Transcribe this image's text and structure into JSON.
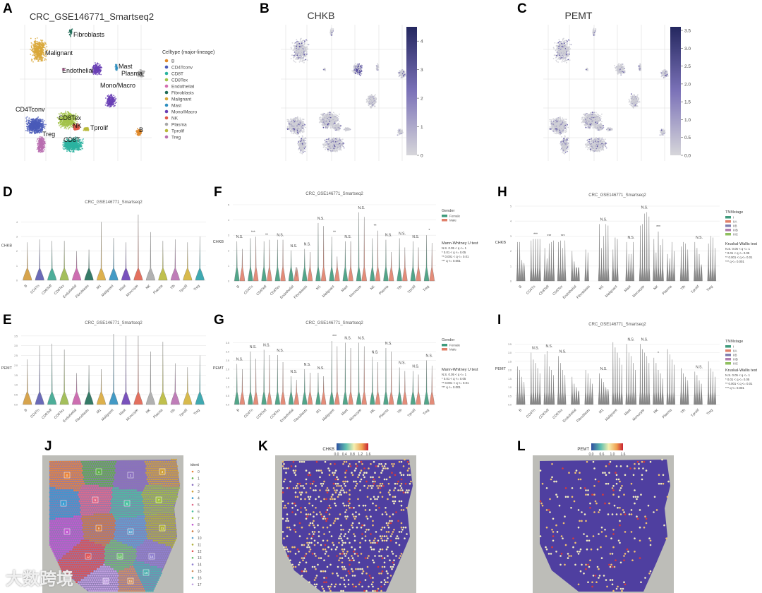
{
  "panels": {
    "A": "A",
    "B": "B",
    "C": "C",
    "D": "D",
    "E": "E",
    "F": "F",
    "G": "G",
    "H": "H",
    "I": "I",
    "J": "J",
    "K": "K",
    "L": "L"
  },
  "colors": {
    "female": "#3f9b7c",
    "male": "#e0806a",
    "gray": "#cfcfd4",
    "purple_dark": "#2b2f6e",
    "tissue_bg": "#bdbdb8",
    "spot": "#4f3fa0"
  },
  "watermark": "大数跨境",
  "chart_data": [
    {
      "id": "A",
      "type": "scatter",
      "title": "CRC_GSE146771_Smartseq2",
      "legend_title": "Celltype (major-lineage)",
      "legend_position": "right",
      "legend": [
        {
          "name": "B",
          "color": "#e08a2a"
        },
        {
          "name": "CD4Tconv",
          "color": "#4a5ab8"
        },
        {
          "name": "CD8T",
          "color": "#2bb3a0"
        },
        {
          "name": "CD8Tex",
          "color": "#a3c34a"
        },
        {
          "name": "Endothelial",
          "color": "#d46fb0"
        },
        {
          "name": "Fibroblasts",
          "color": "#1f6b57"
        },
        {
          "name": "Malignant",
          "color": "#d9a83a"
        },
        {
          "name": "Mast",
          "color": "#2f8fbf"
        },
        {
          "name": "Mono/Macro",
          "color": "#6a3fb5"
        },
        {
          "name": "NK",
          "color": "#e05a4a"
        },
        {
          "name": "Plasma",
          "color": "#a8a8a8"
        },
        {
          "name": "Tprolif",
          "color": "#b9b93a"
        },
        {
          "name": "Treg",
          "color": "#b86fb0"
        }
      ],
      "cluster_labels": [
        "Fibroblasts",
        "Malignant",
        "Endothelial",
        "Mast",
        "Plasma",
        "Mono/Macro",
        "CD4Tconv",
        "CD8Tex",
        "NK",
        "Tprolif",
        "Treg",
        "CD8T",
        "B"
      ]
    },
    {
      "id": "B",
      "type": "scatter",
      "title": "CHKB",
      "colorbar": {
        "ticks": [
          "0",
          "1",
          "2",
          "3",
          "4"
        ],
        "range": [
          0,
          4.5
        ]
      }
    },
    {
      "id": "C",
      "type": "scatter",
      "title": "PEMT",
      "colorbar": {
        "ticks": [
          "0.0",
          "0.5",
          "1.0",
          "1.5",
          "2.0",
          "2.5",
          "3.0",
          "3.5"
        ],
        "range": [
          0,
          3.6
        ]
      }
    },
    {
      "id": "D",
      "type": "violin",
      "title": "CRC_GSE146771_Smartseq2",
      "ylabel": "CHKB",
      "ylim": [
        0,
        4.6
      ],
      "yticks": [
        "0",
        "1",
        "2",
        "3",
        "4"
      ],
      "categories": [
        "B",
        "CD4Tn",
        "CD8Teff",
        "CD8Tex",
        "Endothelial",
        "Fibroblasts",
        "M1",
        "Malignant",
        "Mast",
        "Monocyte",
        "NK",
        "Plasma",
        "Tfh",
        "Tprolif",
        "Treg"
      ],
      "values": [
        2.6,
        2.8,
        2.7,
        2.7,
        2.0,
        2.1,
        4.0,
        2.9,
        2.6,
        4.5,
        3.3,
        2.7,
        2.8,
        2.6,
        3.0
      ]
    },
    {
      "id": "E",
      "type": "violin",
      "title": "CRC_GSE146771_Smartseq2",
      "ylabel": "PEMT",
      "ylim": [
        0,
        3.6
      ],
      "yticks": [
        "0.0",
        "0.5",
        "1.0",
        "1.5",
        "2.0",
        "2.5",
        "3.0",
        "3.5"
      ],
      "categories": [
        "B",
        "CD4Tn",
        "CD8Teff",
        "CD8Tex",
        "Endothelial",
        "Fibroblasts",
        "M1",
        "Malignant",
        "Mast",
        "Monocyte",
        "NK",
        "Plasma",
        "Tfh",
        "Tprolif",
        "Treg"
      ],
      "values": [
        2.3,
        3.0,
        3.1,
        2.8,
        1.6,
        2.0,
        1.8,
        3.6,
        3.5,
        3.5,
        2.7,
        3.2,
        2.1,
        1.9,
        2.5
      ]
    },
    {
      "id": "F",
      "type": "violin",
      "title": "CRC_GSE146771_Smartseq2",
      "ylabel": "CHKB",
      "ylim": [
        0,
        5
      ],
      "yticks": [
        "0",
        "1",
        "2",
        "3",
        "4",
        "5"
      ],
      "categories": [
        "B",
        "CD4Tn",
        "CD8Teff",
        "CD8Tex",
        "Endothelial",
        "Fibroblasts",
        "M1",
        "Malignant",
        "Mast",
        "Monocyte",
        "NK",
        "Plasma",
        "Tfh",
        "Tprolif",
        "Treg"
      ],
      "legend_title": "Gender",
      "legend": [
        {
          "name": "Female",
          "color": "#3f9b7c"
        },
        {
          "name": "Male",
          "color": "#e0806a"
        }
      ],
      "series": [
        {
          "name": "Female",
          "values": [
            2.6,
            2.8,
            2.6,
            2.7,
            2.0,
            2.1,
            3.8,
            2.9,
            2.6,
            4.5,
            2.8,
            2.7,
            2.8,
            2.6,
            3.0
          ]
        },
        {
          "name": "Male",
          "values": [
            2.1,
            2.9,
            2.7,
            2.7,
            0.3,
            1.9,
            3.6,
            1.6,
            2.6,
            4.2,
            3.3,
            1.9,
            2.2,
            2.2,
            2.5
          ]
        }
      ],
      "significance": [
        "N.S.",
        "***",
        "**",
        "N.S.",
        "N.S.",
        "N.S.",
        "N.S.",
        "**",
        "N.S.",
        "N.S.",
        "**",
        "N.S.",
        "N.S.",
        "N.S.",
        "*"
      ],
      "test_title": "Mann-Whitney U test",
      "test_legend": [
        "N.S. 0.05 < q <= 1",
        "* 0.01 < q <= 0.05",
        "** 0.001 < q <= 0.01",
        "*** q <= 0.001"
      ]
    },
    {
      "id": "G",
      "type": "violin",
      "title": "CRC_GSE146771_Smartseq2",
      "ylabel": "PEMT",
      "ylim": [
        0,
        4
      ],
      "yticks": [
        "0.0",
        "0.5",
        "1.0",
        "1.5",
        "2.0",
        "2.5",
        "3.0",
        "3.5"
      ],
      "categories": [
        "B",
        "CD4Tn",
        "CD8Teff",
        "CD8Tex",
        "Endothelial",
        "Fibroblasts",
        "M1",
        "Malignant",
        "Mast",
        "Monocyte",
        "NK",
        "Plasma",
        "Tfh",
        "Tprolif",
        "Treg"
      ],
      "legend_title": "Gender",
      "legend": [
        {
          "name": "Female",
          "color": "#3f9b7c"
        },
        {
          "name": "Male",
          "color": "#e0806a"
        }
      ],
      "series": [
        {
          "name": "Female",
          "values": [
            2.3,
            3.0,
            3.1,
            2.8,
            1.6,
            2.0,
            1.8,
            3.6,
            3.5,
            3.5,
            2.7,
            3.2,
            2.1,
            1.9,
            2.5
          ]
        },
        {
          "name": "Male",
          "values": [
            2.0,
            2.6,
            2.8,
            2.4,
            1.4,
            1.8,
            1.6,
            3.3,
            3.2,
            3.3,
            2.4,
            3.0,
            1.9,
            1.7,
            2.2
          ]
        }
      ],
      "significance": [
        "N.S.",
        "N.S.",
        "N.S.",
        "N.S.",
        "N.S.",
        "N.S.",
        "N.S.",
        "***",
        "N.S.",
        "N.S.",
        "N.S.",
        "N.S.",
        "N.S.",
        "N.S.",
        "N.S."
      ],
      "test_title": "Mann-Whitney U test",
      "test_legend": [
        "N.S. 0.05 < q <= 1",
        "* 0.01 < q <= 0.05",
        "** 0.001 < q <= 0.01",
        "*** q <= 0.001"
      ]
    },
    {
      "id": "H",
      "type": "violin",
      "title": "CRC_GSE146771_Smartseq2",
      "ylabel": "CHKB",
      "ylim": [
        0,
        5
      ],
      "yticks": [
        "0",
        "1",
        "2",
        "3",
        "4",
        "5"
      ],
      "categories": [
        "B",
        "CD4Tn",
        "CD8Teff",
        "CD8Tex",
        "Endothelial",
        "Fibroblasts",
        "M1",
        "Malignant",
        "Mast",
        "Monocyte",
        "NK",
        "Plasma",
        "Tfh",
        "Tprolif",
        "Treg"
      ],
      "legend_title": "TNMstage",
      "legend": [
        {
          "name": "I",
          "color": "#3f9b7c"
        },
        {
          "name": "IIA",
          "color": "#e0806a"
        },
        {
          "name": "IIB",
          "color": "#7f7fb0"
        },
        {
          "name": "IIIB",
          "color": "#b07fb0"
        },
        {
          "name": "IIIC",
          "color": "#8fbf5f"
        }
      ],
      "series": [
        {
          "name": "I",
          "values": [
            2.6,
            2.7,
            2.2,
            2.6,
            2.0,
            2.1,
            3.8,
            2.1,
            2.6,
            3.7,
            2.8,
            1.8,
            2.3,
            2.6,
            2.5
          ]
        },
        {
          "name": "IIA",
          "values": [
            2.6,
            2.8,
            1.5,
            2.7,
            1.3,
            1.9,
            2.2,
            2.9,
            1.8,
            3.8,
            1.9,
            1.5,
            2.6,
            2.2,
            3.0
          ]
        },
        {
          "name": "IIB",
          "values": [
            1.4,
            2.8,
            2.5,
            2.2,
            0.4,
            0,
            3.0,
            2.8,
            1.8,
            4.5,
            3.3,
            2.6,
            2.5,
            1.8,
            2.9
          ]
        },
        {
          "name": "IIIB",
          "values": [
            1.2,
            2.8,
            2.6,
            2.7,
            0.4,
            0,
            3.8,
            0,
            2.6,
            4.6,
            2.4,
            2.0,
            2.1,
            1.1,
            2.2
          ]
        },
        {
          "name": "IIIC",
          "values": [
            0,
            2.8,
            2.7,
            0,
            0,
            0,
            3.7,
            0,
            0,
            4.3,
            2.8,
            0,
            0,
            0,
            0
          ]
        }
      ],
      "significance": [
        "",
        "***",
        "***",
        "***",
        "",
        "",
        "N.S.",
        "",
        "N.S.",
        "N.S.",
        "***",
        "",
        "",
        "N.S.",
        ""
      ],
      "test_title": "Kruskal-Wallis test",
      "test_legend": [
        "N.S. 0.05 < q <= 1",
        "* 0.01 < q <= 0.05",
        "** 0.001 < q <= 0.01",
        "*** q <= 0.001"
      ]
    },
    {
      "id": "I",
      "type": "violin",
      "title": "CRC_GSE146771_Smartseq2",
      "ylabel": "PEMT",
      "ylim": [
        0,
        4
      ],
      "yticks": [
        "0.0",
        "0.5",
        "1.0",
        "1.5",
        "2.0",
        "2.5",
        "3.0",
        "3.5"
      ],
      "categories": [
        "B",
        "CD4Tn",
        "CD8Teff",
        "CD8Tex",
        "Endothelial",
        "Fibroblasts",
        "M1",
        "Malignant",
        "Mast",
        "Monocyte",
        "NK",
        "Plasma",
        "Tfh",
        "Tprolif",
        "Treg"
      ],
      "legend_title": "TNMstage",
      "legend": [
        {
          "name": "I",
          "color": "#3f9b7c"
        },
        {
          "name": "IIA",
          "color": "#e0806a"
        },
        {
          "name": "IIB",
          "color": "#7f7fb0"
        },
        {
          "name": "IIIB",
          "color": "#b07fb0"
        },
        {
          "name": "IIIC",
          "color": "#8fbf5f"
        }
      ],
      "series": [
        {
          "name": "I",
          "values": [
            2.2,
            3.0,
            2.9,
            2.8,
            1.6,
            2.0,
            1.8,
            3.6,
            3.5,
            3.5,
            2.7,
            3.2,
            2.1,
            1.9,
            2.5
          ]
        },
        {
          "name": "IIA",
          "values": [
            2.0,
            2.6,
            3.1,
            2.4,
            1.2,
            1.8,
            1.5,
            3.3,
            3.0,
            3.2,
            2.4,
            2.9,
            1.8,
            1.7,
            2.1
          ]
        },
        {
          "name": "IIB",
          "values": [
            1.6,
            2.4,
            2.2,
            2.0,
            1.0,
            1.5,
            1.3,
            3.0,
            2.8,
            3.0,
            2.0,
            2.6,
            1.6,
            1.4,
            1.9
          ]
        },
        {
          "name": "IIIB",
          "values": [
            1.3,
            2.1,
            2.0,
            1.7,
            0.8,
            1.2,
            1.0,
            2.7,
            2.4,
            2.8,
            1.8,
            2.3,
            1.4,
            1.2,
            1.6
          ]
        },
        {
          "name": "IIIC",
          "values": [
            0,
            1.8,
            1.7,
            0,
            0,
            0,
            0.9,
            2.3,
            2.0,
            2.4,
            1.5,
            0,
            0,
            0,
            0
          ]
        }
      ],
      "significance": [
        "",
        "N.S.",
        "N.S.",
        "N.S.",
        "",
        "",
        "N.S.",
        "",
        "N.S.",
        "N.S.",
        "*",
        "",
        "",
        "N.S.",
        ""
      ],
      "test_title": "Kruskal-Wallis test",
      "test_legend": [
        "N.S. 0.05 < q <= 1",
        "* 0.01 < q <= 0.05",
        "** 0.001 < q <= 0.01",
        "*** q <= 0.001"
      ]
    },
    {
      "id": "J",
      "type": "scatter",
      "legend_title": "ident",
      "legend": [
        "0",
        "1",
        "2",
        "3",
        "4",
        "5",
        "6",
        "7",
        "8",
        "9",
        "10",
        "11",
        "12",
        "13",
        "14",
        "15",
        "16",
        "17"
      ]
    },
    {
      "id": "K",
      "type": "scatter",
      "colorbar": {
        "label": "CHKB",
        "ticks": [
          "0.0",
          "0.4",
          "0.8",
          "1.2",
          "1.6"
        ]
      }
    },
    {
      "id": "L",
      "type": "scatter",
      "colorbar": {
        "label": "PEMT",
        "ticks": [
          "0.0",
          "0.6",
          "1.0",
          "1.6"
        ]
      }
    }
  ]
}
